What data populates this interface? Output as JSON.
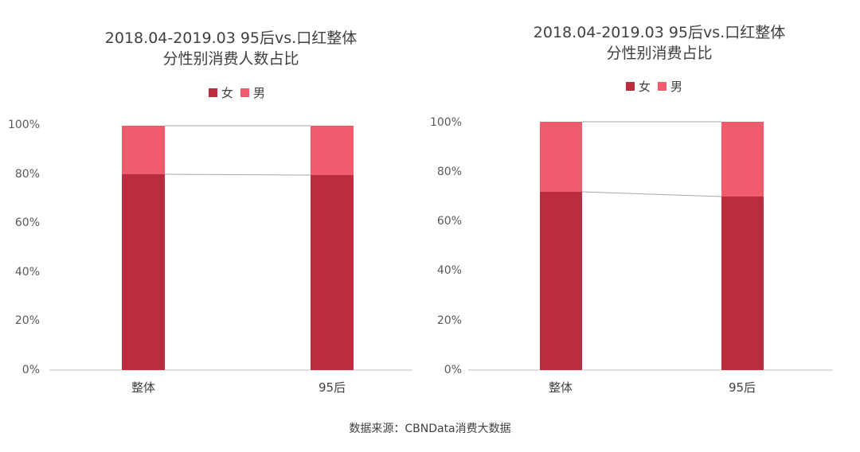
{
  "colors": {
    "female": "#b92d3e",
    "male": "#ef5c6d",
    "connector": "#a6a6a6",
    "axis": "#bfbfbf"
  },
  "chart_data": [
    {
      "type": "bar",
      "stacked": true,
      "title_lines": [
        "2018.04-2019.03 95后vs.口红整体",
        "分性别消费人数占比"
      ],
      "legend": [
        "女",
        "男"
      ],
      "categories": [
        "整体",
        "95后"
      ],
      "series": [
        {
          "name": "女",
          "values": [
            80,
            79.5
          ]
        },
        {
          "name": "男",
          "values": [
            20,
            20.5
          ]
        }
      ],
      "yticks": [
        "0%",
        "20%",
        "40%",
        "60%",
        "80%",
        "100%"
      ],
      "ylim": [
        0,
        100
      ]
    },
    {
      "type": "bar",
      "stacked": true,
      "title_lines": [
        "2018.04-2019.03 95后vs.口红整体",
        "分性别消费占比"
      ],
      "legend": [
        "女",
        "男"
      ],
      "categories": [
        "整体",
        "95后"
      ],
      "series": [
        {
          "name": "女",
          "values": [
            71.5,
            69.5
          ]
        },
        {
          "name": "男",
          "values": [
            28.5,
            30.5
          ]
        }
      ],
      "yticks": [
        "0%",
        "20%",
        "40%",
        "60%",
        "80%",
        "100%"
      ],
      "ylim": [
        0,
        100
      ]
    }
  ],
  "source": "数据来源：CBNData消费大数据"
}
